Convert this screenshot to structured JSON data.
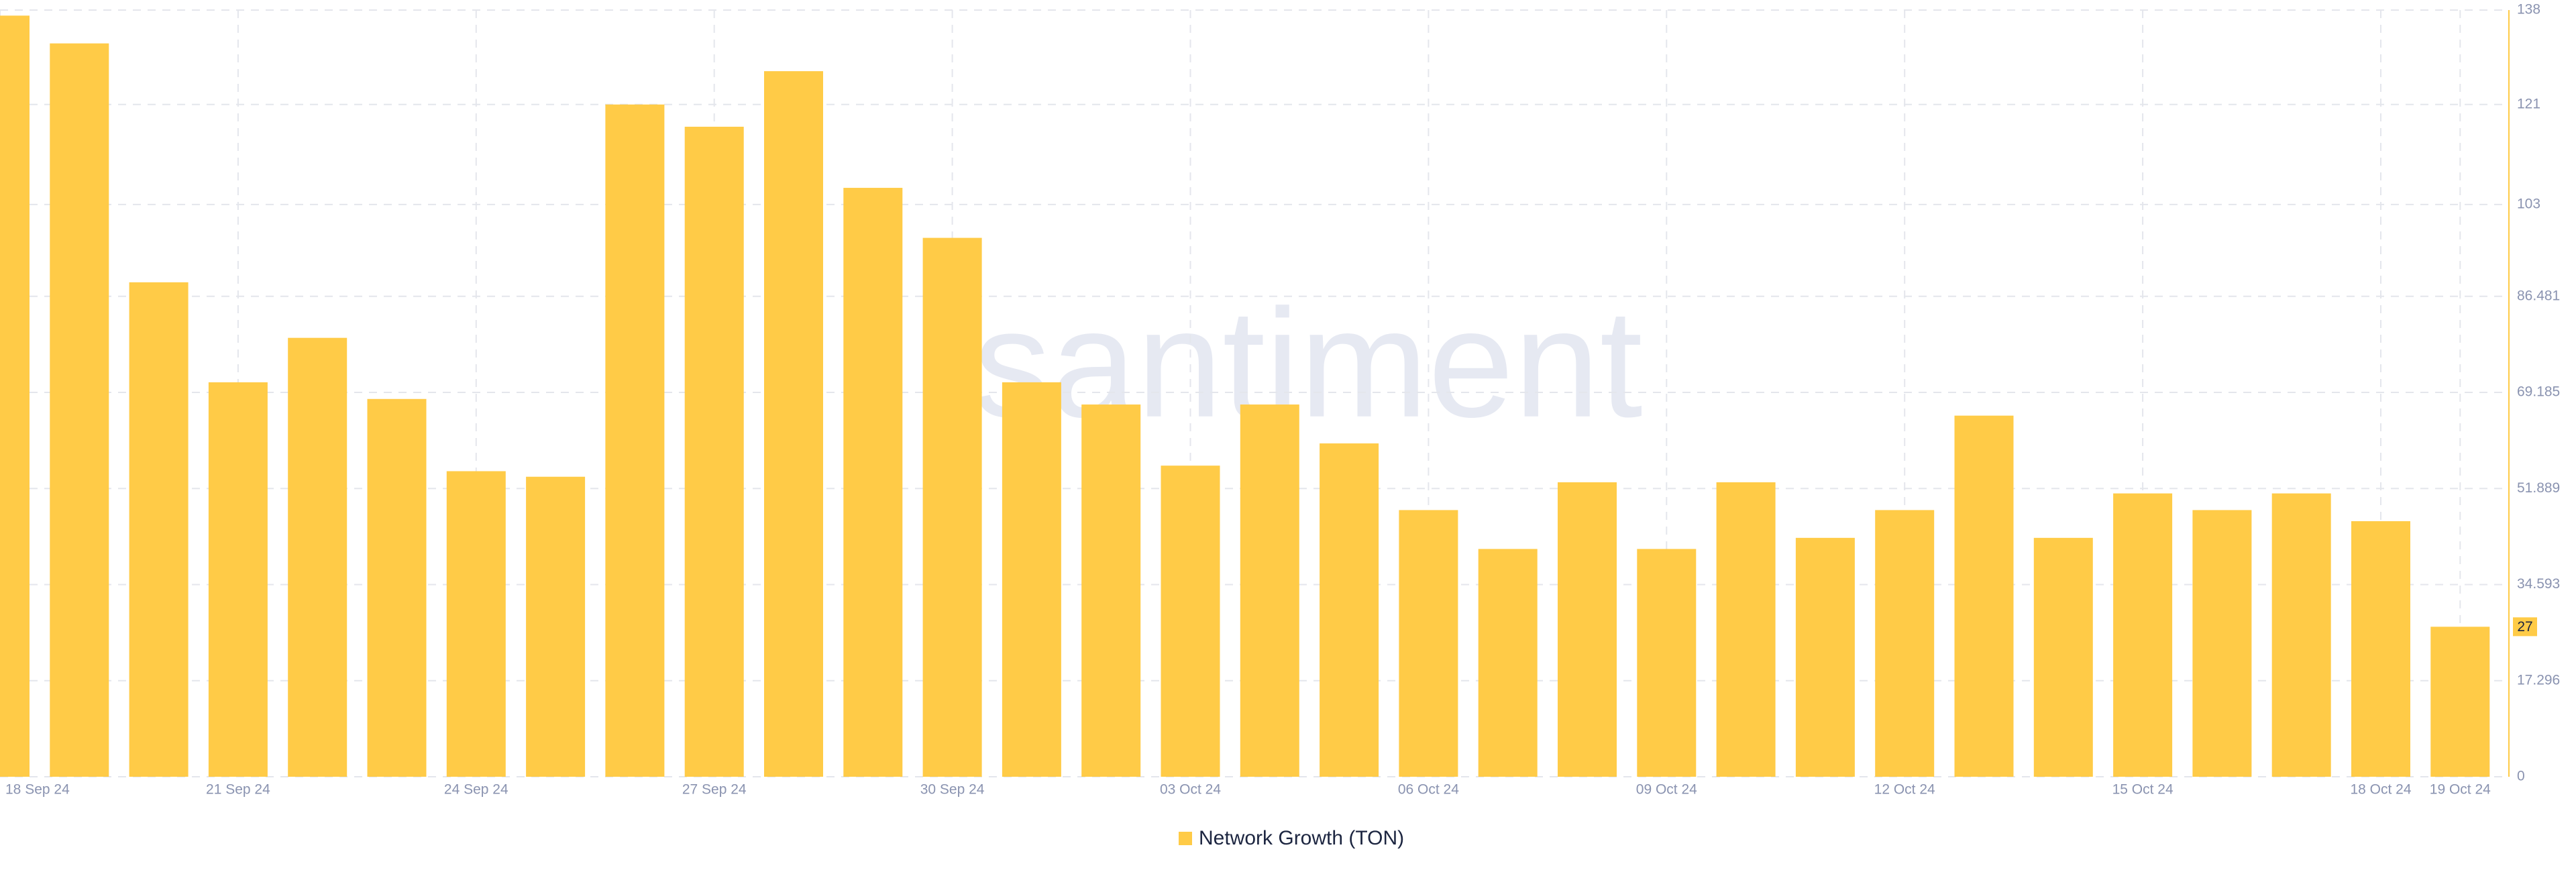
{
  "chart_data": {
    "type": "bar",
    "watermark": "santiment",
    "categories": [
      "18 Sep 24",
      null,
      null,
      "21 Sep 24",
      null,
      null,
      "24 Sep 24",
      null,
      null,
      "27 Sep 24",
      null,
      null,
      "30 Sep 24",
      null,
      null,
      "03 Oct 24",
      null,
      null,
      "06 Oct 24",
      null,
      null,
      "09 Oct 24",
      null,
      null,
      "12 Oct 24",
      null,
      null,
      "15 Oct 24",
      null,
      null,
      "18 Oct 24",
      "19 Oct 24"
    ],
    "series": [
      {
        "name": "Network Growth (TON)",
        "color": "#ffcb47",
        "values": [
          137,
          132,
          89,
          71,
          79,
          68,
          55,
          54,
          121,
          117,
          127,
          106,
          97,
          71,
          67,
          56,
          67,
          60,
          48,
          41,
          53,
          41,
          53,
          43,
          48,
          65,
          43,
          51,
          48,
          51,
          46,
          27
        ]
      }
    ],
    "ylim": [
      0,
      138
    ],
    "yticks": [
      0,
      17.296,
      34.593,
      51.889,
      69.185,
      86.481,
      103,
      121,
      138
    ],
    "grid": true
  }
}
